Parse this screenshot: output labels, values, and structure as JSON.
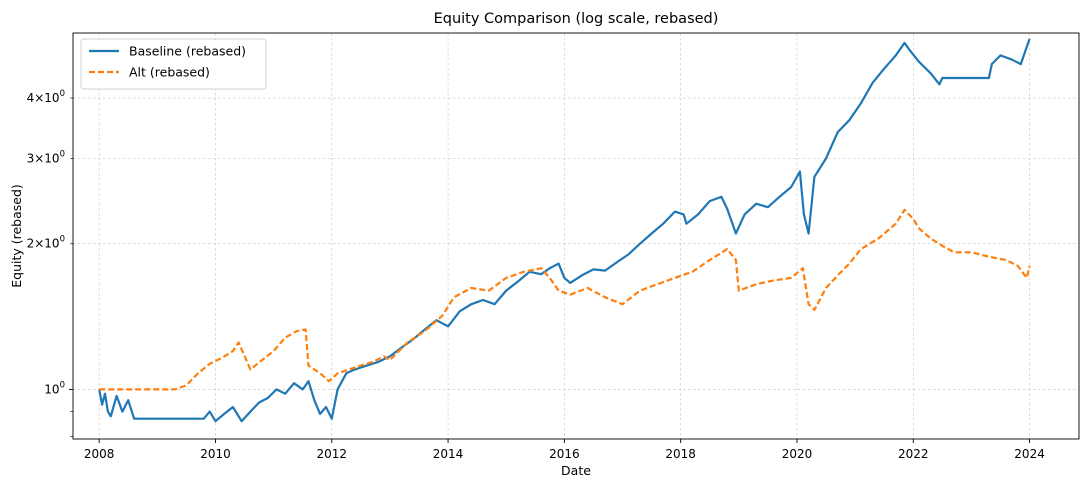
{
  "chart_data": {
    "type": "line",
    "title": "Equity Comparison (log scale, rebased)",
    "xlabel": "Date",
    "ylabel": "Equity (rebased)",
    "yscale": "log",
    "xlim": [
      2007.55,
      2024.85
    ],
    "ylim": [
      0.79,
      5.45
    ],
    "grid": true,
    "legend_position": "top-left",
    "x_ticks": [
      2008,
      2010,
      2012,
      2014,
      2016,
      2018,
      2020,
      2022,
      2024
    ],
    "x_tick_labels": [
      "2008",
      "2010",
      "2012",
      "2014",
      "2016",
      "2018",
      "2020",
      "2022",
      "2024"
    ],
    "y_major_ticks": [
      {
        "value": 1,
        "base": "10",
        "exp": "0"
      }
    ],
    "y_minor_ticks": [
      {
        "value": 2,
        "mantissa": "2",
        "base": "10",
        "exp": "0"
      },
      {
        "value": 3,
        "mantissa": "3",
        "base": "10",
        "exp": "0"
      },
      {
        "value": 4,
        "mantissa": "4",
        "base": "10",
        "exp": "0"
      }
    ],
    "y_unlabeled_minor_ticks": [
      0.8,
      0.9
    ],
    "series": [
      {
        "name": "Baseline (rebased)",
        "color": "#1f77b4",
        "style": "solid",
        "x": [
          2008.0,
          2008.05,
          2008.1,
          2008.15,
          2008.2,
          2008.3,
          2008.4,
          2008.5,
          2008.6,
          2008.7,
          2008.8,
          2009.0,
          2009.3,
          2009.6,
          2009.8,
          2009.9,
          2010.0,
          2010.15,
          2010.3,
          2010.45,
          2010.6,
          2010.75,
          2010.9,
          2011.05,
          2011.2,
          2011.35,
          2011.5,
          2011.6,
          2011.7,
          2011.8,
          2011.9,
          2012.0,
          2012.1,
          2012.25,
          2012.4,
          2012.6,
          2012.8,
          2013.0,
          2013.2,
          2013.4,
          2013.6,
          2013.8,
          2014.0,
          2014.2,
          2014.4,
          2014.6,
          2014.8,
          2015.0,
          2015.2,
          2015.4,
          2015.6,
          2015.75,
          2015.9,
          2016.0,
          2016.1,
          2016.3,
          2016.5,
          2016.7,
          2016.9,
          2017.1,
          2017.3,
          2017.5,
          2017.7,
          2017.9,
          2018.05,
          2018.1,
          2018.3,
          2018.5,
          2018.7,
          2018.8,
          2018.95,
          2019.1,
          2019.3,
          2019.5,
          2019.7,
          2019.9,
          2020.05,
          2020.12,
          2020.2,
          2020.3,
          2020.5,
          2020.7,
          2020.9,
          2021.1,
          2021.3,
          2021.5,
          2021.7,
          2021.85,
          2021.95,
          2022.1,
          2022.3,
          2022.45,
          2022.5,
          2023.3,
          2023.35,
          2023.5,
          2023.7,
          2023.85,
          2023.95,
          2024.0
        ],
        "y": [
          1.0,
          0.93,
          0.98,
          0.9,
          0.88,
          0.97,
          0.9,
          0.95,
          0.87,
          0.87,
          0.87,
          0.87,
          0.87,
          0.87,
          0.87,
          0.9,
          0.86,
          0.89,
          0.92,
          0.86,
          0.9,
          0.94,
          0.96,
          1.0,
          0.98,
          1.03,
          1.0,
          1.04,
          0.95,
          0.89,
          0.92,
          0.87,
          1.0,
          1.08,
          1.1,
          1.12,
          1.14,
          1.17,
          1.22,
          1.27,
          1.33,
          1.39,
          1.35,
          1.45,
          1.5,
          1.53,
          1.5,
          1.6,
          1.67,
          1.75,
          1.73,
          1.78,
          1.82,
          1.7,
          1.66,
          1.72,
          1.77,
          1.76,
          1.83,
          1.9,
          2.0,
          2.1,
          2.2,
          2.33,
          2.3,
          2.2,
          2.3,
          2.45,
          2.5,
          2.36,
          2.1,
          2.3,
          2.42,
          2.38,
          2.5,
          2.62,
          2.82,
          2.3,
          2.1,
          2.75,
          3.0,
          3.4,
          3.6,
          3.9,
          4.3,
          4.6,
          4.9,
          5.2,
          5.0,
          4.75,
          4.5,
          4.27,
          4.4,
          4.4,
          4.7,
          4.9,
          4.8,
          4.7,
          5.1,
          5.3
        ]
      },
      {
        "name": "Alt (rebased)",
        "color": "#ff7f0e",
        "style": "dashed",
        "x": [
          2008.0,
          2008.2,
          2008.6,
          2009.0,
          2009.3,
          2009.5,
          2009.7,
          2009.9,
          2010.1,
          2010.3,
          2010.4,
          2010.6,
          2010.8,
          2011.0,
          2011.2,
          2011.4,
          2011.55,
          2011.6,
          2011.8,
          2011.95,
          2012.1,
          2012.3,
          2012.5,
          2012.7,
          2012.9,
          2013.0,
          2013.3,
          2013.6,
          2013.9,
          2014.1,
          2014.4,
          2014.7,
          2015.0,
          2015.3,
          2015.6,
          2015.75,
          2015.9,
          2016.1,
          2016.4,
          2016.7,
          2017.0,
          2017.3,
          2017.6,
          2017.9,
          2018.2,
          2018.5,
          2018.8,
          2018.95,
          2019.0,
          2019.3,
          2019.6,
          2019.9,
          2020.1,
          2020.2,
          2020.3,
          2020.5,
          2020.7,
          2020.9,
          2021.1,
          2021.4,
          2021.7,
          2021.85,
          2022.0,
          2022.1,
          2022.3,
          2022.5,
          2022.7,
          2023.0,
          2023.3,
          2023.6,
          2023.8,
          2023.95,
          2024.0
        ],
        "y": [
          1.0,
          1.0,
          1.0,
          1.0,
          1.0,
          1.02,
          1.08,
          1.13,
          1.16,
          1.2,
          1.25,
          1.1,
          1.15,
          1.2,
          1.28,
          1.32,
          1.33,
          1.12,
          1.08,
          1.04,
          1.08,
          1.1,
          1.12,
          1.14,
          1.17,
          1.15,
          1.25,
          1.32,
          1.42,
          1.55,
          1.62,
          1.6,
          1.7,
          1.75,
          1.78,
          1.7,
          1.6,
          1.57,
          1.62,
          1.55,
          1.5,
          1.6,
          1.65,
          1.7,
          1.75,
          1.85,
          1.95,
          1.85,
          1.6,
          1.65,
          1.68,
          1.7,
          1.78,
          1.5,
          1.46,
          1.62,
          1.72,
          1.82,
          1.95,
          2.05,
          2.2,
          2.35,
          2.25,
          2.15,
          2.05,
          1.98,
          1.92,
          1.92,
          1.88,
          1.85,
          1.8,
          1.7,
          1.8
        ]
      }
    ]
  }
}
